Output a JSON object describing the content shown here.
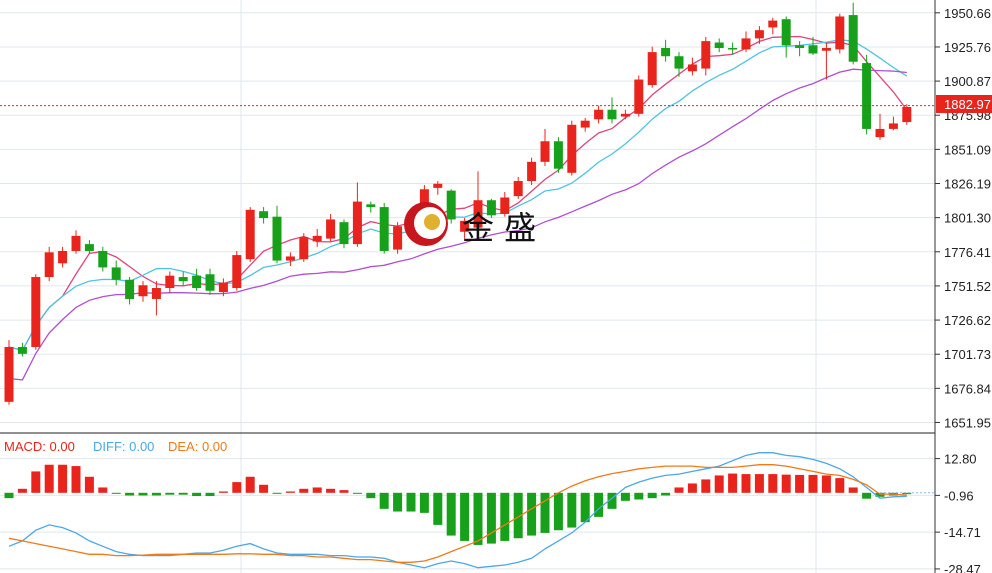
{
  "colors": {
    "up": "#e8241c",
    "down": "#17a01a",
    "ma5": "#e0457b",
    "ma10": "#4fc3e0",
    "ma20": "#b04fd0",
    "diff": "#4aa8e8",
    "dea": "#f07a1a",
    "macd_label": "#e8241c",
    "grid": "#dfe7ee",
    "price_line": "#e8241c"
  },
  "logo": {
    "text": "金 盛",
    "icon": "gold-coin-logo-icon"
  },
  "price_tag": "1882.97",
  "macd_legend": {
    "macd": "MACD: 0.00",
    "diff": "DIFF: 0.00",
    "dea": "DEA: 0.00"
  },
  "chart_data": [
    {
      "type": "candlestick",
      "title": "",
      "ylim": [
        1645,
        1960
      ],
      "y_ticks": [
        "1950.66",
        "1925.76",
        "1900.87",
        "1875.98",
        "1851.09",
        "1826.19",
        "1801.30",
        "1776.41",
        "1751.52",
        "1726.62",
        "1701.73",
        "1676.84",
        "1651.95"
      ],
      "current_price": 1882.97,
      "candles": [
        [
          1667,
          1707,
          1665,
          1712
        ],
        [
          1707,
          1702,
          1700,
          1710
        ],
        [
          1707,
          1758,
          1705,
          1760
        ],
        [
          1758,
          1776,
          1755,
          1780
        ],
        [
          1768,
          1777,
          1765,
          1780
        ],
        [
          1777,
          1788,
          1775,
          1792
        ],
        [
          1782,
          1777,
          1775,
          1785
        ],
        [
          1777,
          1765,
          1762,
          1780
        ],
        [
          1765,
          1756,
          1752,
          1770
        ],
        [
          1756,
          1742,
          1738,
          1758
        ],
        [
          1744,
          1752,
          1740,
          1755
        ],
        [
          1742,
          1750,
          1730,
          1755
        ],
        [
          1750,
          1759,
          1746,
          1762
        ],
        [
          1758,
          1755,
          1752,
          1762
        ],
        [
          1759,
          1750,
          1748,
          1764
        ],
        [
          1760,
          1748,
          1745,
          1764
        ],
        [
          1747,
          1754,
          1744,
          1757
        ],
        [
          1750,
          1774,
          1748,
          1777
        ],
        [
          1771,
          1807,
          1769,
          1809
        ],
        [
          1806,
          1801,
          1797,
          1809
        ],
        [
          1802,
          1770,
          1768,
          1810
        ],
        [
          1770,
          1773,
          1766,
          1776
        ],
        [
          1771,
          1787,
          1769,
          1790
        ],
        [
          1784,
          1788,
          1780,
          1793
        ],
        [
          1786,
          1800,
          1784,
          1804
        ],
        [
          1798,
          1782,
          1779,
          1800
        ],
        [
          1782,
          1813,
          1780,
          1827
        ],
        [
          1811,
          1809,
          1805,
          1813
        ],
        [
          1809,
          1777,
          1775,
          1812
        ],
        [
          1778,
          1795,
          1775,
          1798
        ],
        [
          1795,
          1794,
          1791,
          1800
        ],
        [
          1800,
          1822,
          1797,
          1825
        ],
        [
          1823,
          1826,
          1818,
          1828
        ],
        [
          1821,
          1800,
          1797,
          1822
        ],
        [
          1791,
          1799,
          1786,
          1801
        ],
        [
          1794,
          1814,
          1792,
          1835
        ],
        [
          1814,
          1803,
          1801,
          1815
        ],
        [
          1804,
          1816,
          1802,
          1820
        ],
        [
          1817,
          1828,
          1815,
          1831
        ],
        [
          1828,
          1842,
          1825,
          1845
        ],
        [
          1842,
          1857,
          1839,
          1866
        ],
        [
          1857,
          1837,
          1834,
          1860
        ],
        [
          1834,
          1869,
          1832,
          1872
        ],
        [
          1867,
          1872,
          1864,
          1874
        ],
        [
          1873,
          1880,
          1870,
          1883
        ],
        [
          1880,
          1873,
          1870,
          1889
        ],
        [
          1875,
          1877,
          1873,
          1880
        ],
        [
          1877,
          1902,
          1875,
          1905
        ],
        [
          1898,
          1922,
          1896,
          1926
        ],
        [
          1925,
          1919,
          1915,
          1931
        ],
        [
          1919,
          1910,
          1904,
          1922
        ],
        [
          1908,
          1913,
          1905,
          1918
        ],
        [
          1910,
          1930,
          1905,
          1933
        ],
        [
          1929,
          1925,
          1922,
          1932
        ],
        [
          1925,
          1924,
          1920,
          1929
        ],
        [
          1924,
          1932,
          1922,
          1937
        ],
        [
          1932,
          1938,
          1928,
          1941
        ],
        [
          1940,
          1945,
          1935,
          1947
        ],
        [
          1946,
          1927,
          1918,
          1948
        ],
        [
          1927,
          1925,
          1919,
          1930
        ],
        [
          1927,
          1921,
          1920,
          1933
        ],
        [
          1923,
          1925,
          1902,
          1929
        ],
        [
          1924,
          1948,
          1921,
          1950
        ],
        [
          1949,
          1915,
          1913,
          1958
        ],
        [
          1914,
          1866,
          1862,
          1920
        ],
        [
          1860,
          1866,
          1858,
          1877
        ],
        [
          1866,
          1870,
          1865,
          1875
        ],
        [
          1871,
          1882,
          1869,
          1884
        ]
      ]
    },
    {
      "type": "bar",
      "title": "MACD",
      "ylim": [
        -30,
        22
      ],
      "y_ticks": [
        "12.80",
        "-0.96",
        "-14.71",
        "-28.47"
      ],
      "values": [
        -2,
        1.5,
        8,
        10.5,
        10.5,
        10,
        6,
        2,
        -0.3,
        -1,
        -1,
        -1,
        -0.7,
        -0.7,
        -1.2,
        -1.2,
        0.5,
        4,
        6,
        3,
        -0.3,
        0.5,
        1.5,
        2,
        1.5,
        1,
        -0.3,
        -2,
        -6,
        -7,
        -7,
        -7.5,
        -12,
        -16,
        -18,
        -19.5,
        -19,
        -18,
        -17,
        -16,
        -15,
        -14,
        -13,
        -11,
        -9,
        -6,
        -3,
        -2.5,
        -2,
        -1,
        2,
        3.5,
        5,
        6.5,
        7.2,
        7,
        7,
        7,
        6.8,
        6.7,
        6.7,
        6.5,
        5.5,
        2,
        -2.2,
        -1.5,
        -1,
        -0.5
      ],
      "diff": [
        -20,
        -18,
        -14,
        -12,
        -13,
        -15,
        -18,
        -20,
        -22,
        -23,
        -23.5,
        -23.5,
        -23.5,
        -23,
        -22.5,
        -22.5,
        -21.5,
        -20,
        -19,
        -21,
        -22.5,
        -23,
        -23,
        -23,
        -23.5,
        -23.5,
        -24,
        -24,
        -24.5,
        -26,
        -27,
        -28,
        -26.5,
        -25.5,
        -26.5,
        -28,
        -27.5,
        -27,
        -26,
        -24.5,
        -21,
        -18,
        -15,
        -11,
        -6,
        -2,
        2,
        4,
        5.5,
        6.5,
        7,
        8,
        9,
        10,
        12,
        14,
        15,
        15,
        14,
        13.5,
        12.5,
        11,
        9,
        6,
        2,
        -2,
        -1.5,
        -1.3
      ],
      "dea": [
        -17,
        -18,
        -19,
        -20,
        -21,
        -22,
        -23,
        -23,
        -23.5,
        -23.5,
        -23.3,
        -23,
        -23,
        -23,
        -23,
        -23,
        -23,
        -22.8,
        -22.8,
        -23,
        -23,
        -23.5,
        -23.5,
        -24,
        -24,
        -24.5,
        -25,
        -25,
        -25.5,
        -26,
        -26,
        -25.5,
        -24,
        -22,
        -20,
        -18,
        -15,
        -12,
        -9,
        -6,
        -3,
        0,
        2.5,
        4.5,
        6,
        7.2,
        8,
        9,
        9.5,
        10,
        10,
        10,
        9.5,
        9.5,
        9.5,
        10,
        10.5,
        10.5,
        10,
        9,
        8,
        7,
        6.5,
        5,
        3,
        -0.5,
        -0.5,
        -0.9
      ]
    }
  ]
}
